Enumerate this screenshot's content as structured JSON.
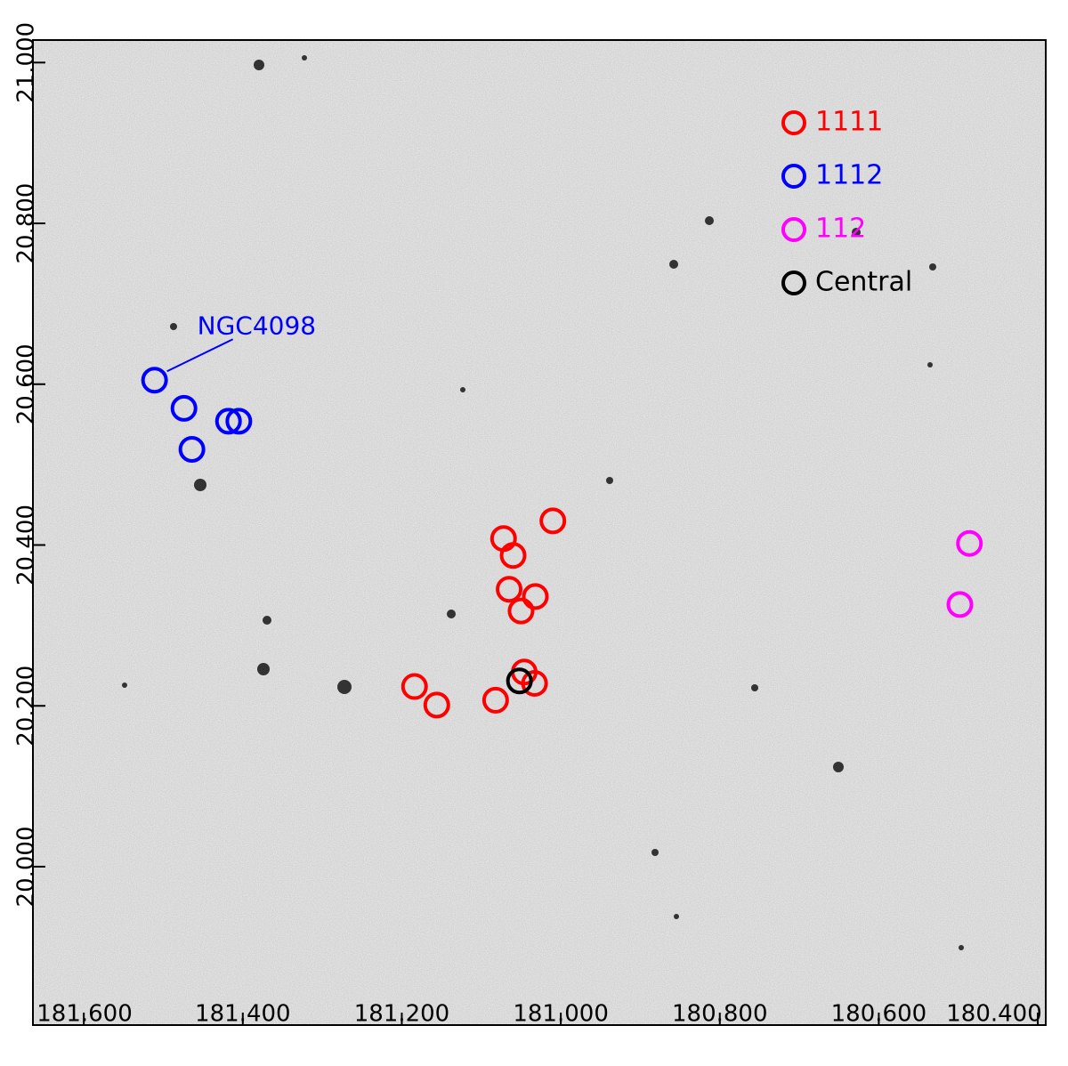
{
  "chart_data": {
    "type": "scatter",
    "annotation": "NGC4098",
    "legend": "upper right",
    "xlim": [
      181.664,
      180.39
    ],
    "ylim": [
      19.803,
      21.028
    ],
    "xticks": [
      {
        "value": 181.6,
        "label": "181.600"
      },
      {
        "value": 181.4,
        "label": "181.400"
      },
      {
        "value": 181.2,
        "label": "181.200"
      },
      {
        "value": 181.0,
        "label": "181.000"
      },
      {
        "value": 180.8,
        "label": "180.800"
      },
      {
        "value": 180.6,
        "label": "180.600"
      },
      {
        "value": 180.4,
        "label": "180.400"
      }
    ],
    "yticks": [
      {
        "value": 21.0,
        "label": "21.000"
      },
      {
        "value": 20.8,
        "label": "20.800"
      },
      {
        "value": 20.6,
        "label": "20.600"
      },
      {
        "value": 20.4,
        "label": "20.400"
      },
      {
        "value": 20.2,
        "label": "20.200"
      },
      {
        "value": 20.0,
        "label": "20.000"
      }
    ],
    "series": [
      {
        "name": "1111",
        "color": "#ff0000",
        "x": [
          181.01,
          181.072,
          181.06,
          181.065,
          181.032,
          181.05,
          181.046,
          181.033,
          181.184,
          181.156,
          181.082
        ],
        "values": [
          20.43,
          20.408,
          20.387,
          20.345,
          20.336,
          20.318,
          20.242,
          20.228,
          20.224,
          20.201,
          20.207
        ]
      },
      {
        "name": "1112",
        "color": "#0000ff",
        "x": [
          181.511,
          181.474,
          181.418,
          181.405,
          181.464
        ],
        "values": [
          20.605,
          20.57,
          20.554,
          20.554,
          20.519
        ]
      },
      {
        "name": "112",
        "color": "#ff00ff",
        "x": [
          180.486,
          180.498
        ],
        "values": [
          20.402,
          20.326
        ]
      },
      {
        "name": "Central",
        "color": "#000000",
        "x": [
          181.052
        ],
        "values": [
          20.231
        ]
      }
    ]
  }
}
